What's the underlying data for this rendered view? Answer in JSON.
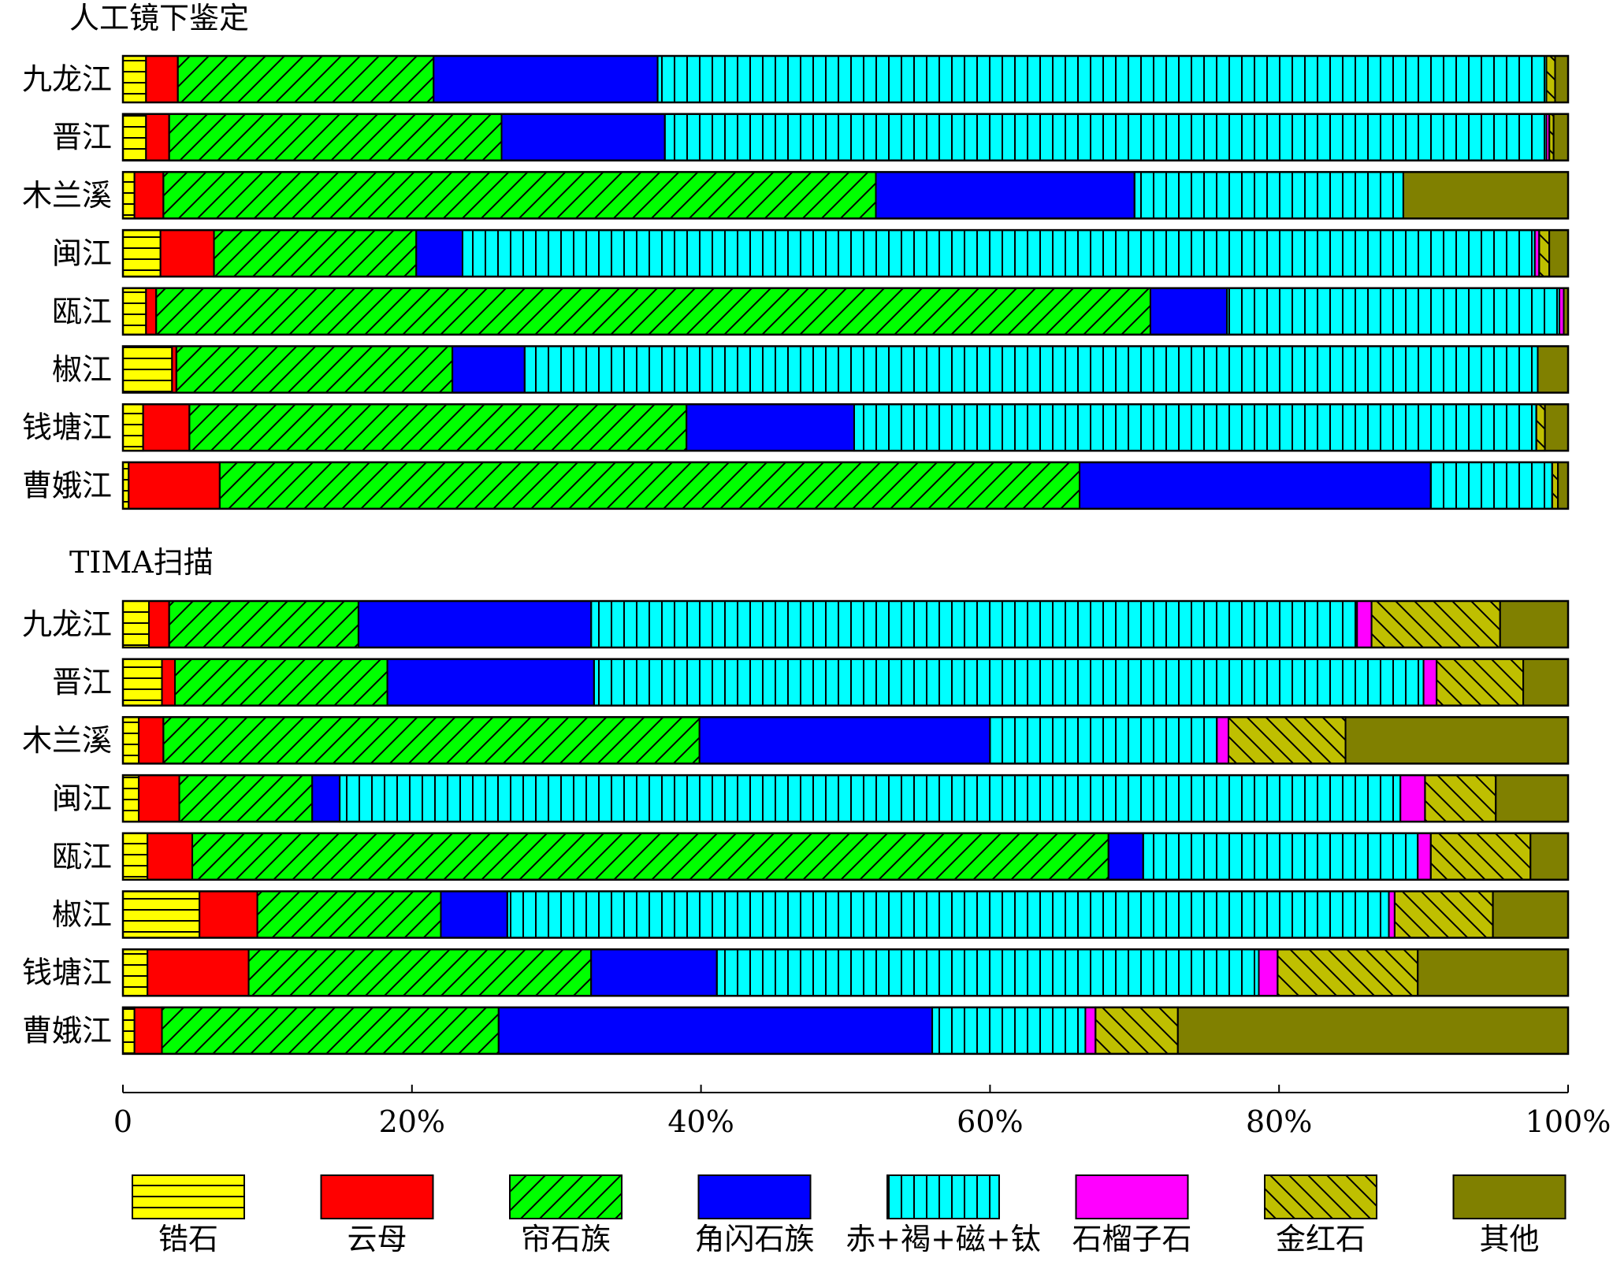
{
  "chart_data": [
    {
      "type": "bar",
      "orientation": "horizontal",
      "stacked": "percent",
      "title": "人工镜下鉴定",
      "categories": [
        "九龙江",
        "晋江",
        "木兰溪",
        "闽江",
        "瓯江",
        "椒江",
        "钱塘江",
        "曹娥江"
      ],
      "series": [
        {
          "name": "锆石",
          "values": [
            1.6,
            1.6,
            0.8,
            2.6,
            1.6,
            3.4,
            1.4,
            0.4
          ]
        },
        {
          "name": "云母",
          "values": [
            2.2,
            1.6,
            2.0,
            3.7,
            0.7,
            0.3,
            3.2,
            6.3
          ]
        },
        {
          "name": "帘石族",
          "values": [
            17.7,
            23.0,
            49.3,
            14.0,
            68.8,
            19.1,
            34.4,
            59.5
          ]
        },
        {
          "name": "角闪石族",
          "values": [
            15.5,
            11.3,
            17.9,
            3.2,
            5.3,
            5.0,
            11.6,
            24.3
          ]
        },
        {
          "name": "赤+褐+磁+钛",
          "values": [
            61.5,
            61.0,
            18.6,
            74.2,
            23.0,
            70.1,
            47.2,
            8.4
          ]
        },
        {
          "name": "石榴子石",
          "values": [
            0.0,
            0.2,
            0.0,
            0.3,
            0.3,
            0.0,
            0.0,
            0.0
          ]
        },
        {
          "name": "金红石",
          "values": [
            0.6,
            0.3,
            0.0,
            0.7,
            0.0,
            0.0,
            0.6,
            0.4
          ]
        },
        {
          "name": "其他",
          "values": [
            0.9,
            1.0,
            11.4,
            1.3,
            0.3,
            2.1,
            1.6,
            0.7
          ]
        }
      ]
    },
    {
      "type": "bar",
      "orientation": "horizontal",
      "stacked": "percent",
      "title": "TIMA扫描",
      "categories": [
        "九龙江",
        "晋江",
        "木兰溪",
        "闽江",
        "瓯江",
        "椒江",
        "钱塘江",
        "曹娥江"
      ],
      "series": [
        {
          "name": "锆石",
          "values": [
            1.8,
            2.7,
            1.1,
            1.1,
            1.7,
            5.3,
            1.7,
            0.8
          ]
        },
        {
          "name": "云母",
          "values": [
            1.4,
            0.9,
            1.7,
            2.8,
            3.1,
            4.0,
            7.0,
            1.9
          ]
        },
        {
          "name": "帘石族",
          "values": [
            13.1,
            14.7,
            37.1,
            9.2,
            63.4,
            12.7,
            23.7,
            23.3
          ]
        },
        {
          "name": "角闪石族",
          "values": [
            16.1,
            14.3,
            20.1,
            1.9,
            2.4,
            4.6,
            8.7,
            30.0
          ]
        },
        {
          "name": "赤+褐+磁+钛",
          "values": [
            53.0,
            57.4,
            15.7,
            73.4,
            19.0,
            61.0,
            37.5,
            10.6
          ]
        },
        {
          "name": "石榴子石",
          "values": [
            1.0,
            0.9,
            0.8,
            1.7,
            0.9,
            0.4,
            1.3,
            0.7
          ]
        },
        {
          "name": "金红石",
          "values": [
            8.9,
            6.0,
            8.1,
            4.9,
            6.9,
            6.8,
            9.7,
            5.7
          ]
        },
        {
          "name": "其他",
          "values": [
            4.7,
            3.1,
            15.4,
            5.0,
            2.6,
            5.2,
            10.4,
            27.0
          ]
        }
      ]
    }
  ],
  "shared": {
    "xlim": [
      0,
      100
    ],
    "ticks": [
      "0",
      "20%",
      "40%",
      "60%",
      "80%",
      "100%"
    ],
    "tick_values": [
      0,
      20,
      40,
      60,
      80,
      100
    ]
  },
  "legend": {
    "placement": "bottom",
    "items": [
      {
        "name": "锆石",
        "color": "#ffff00",
        "pattern": "horizontal-lines"
      },
      {
        "name": "云母",
        "color": "#ff0000",
        "pattern": "solid"
      },
      {
        "name": "帘石族",
        "color": "#00ff00",
        "pattern": "diagonal-forward"
      },
      {
        "name": "角闪石族",
        "color": "#0000ff",
        "pattern": "solid"
      },
      {
        "name": "赤+褐+磁+钛",
        "color": "#00ffff",
        "pattern": "vertical-lines"
      },
      {
        "name": "石榴子石",
        "color": "#ff00ff",
        "pattern": "solid"
      },
      {
        "name": "金红石",
        "color": "#bfbf00",
        "pattern": "diagonal-back"
      },
      {
        "name": "其他",
        "color": "#808000",
        "pattern": "solid"
      }
    ]
  }
}
